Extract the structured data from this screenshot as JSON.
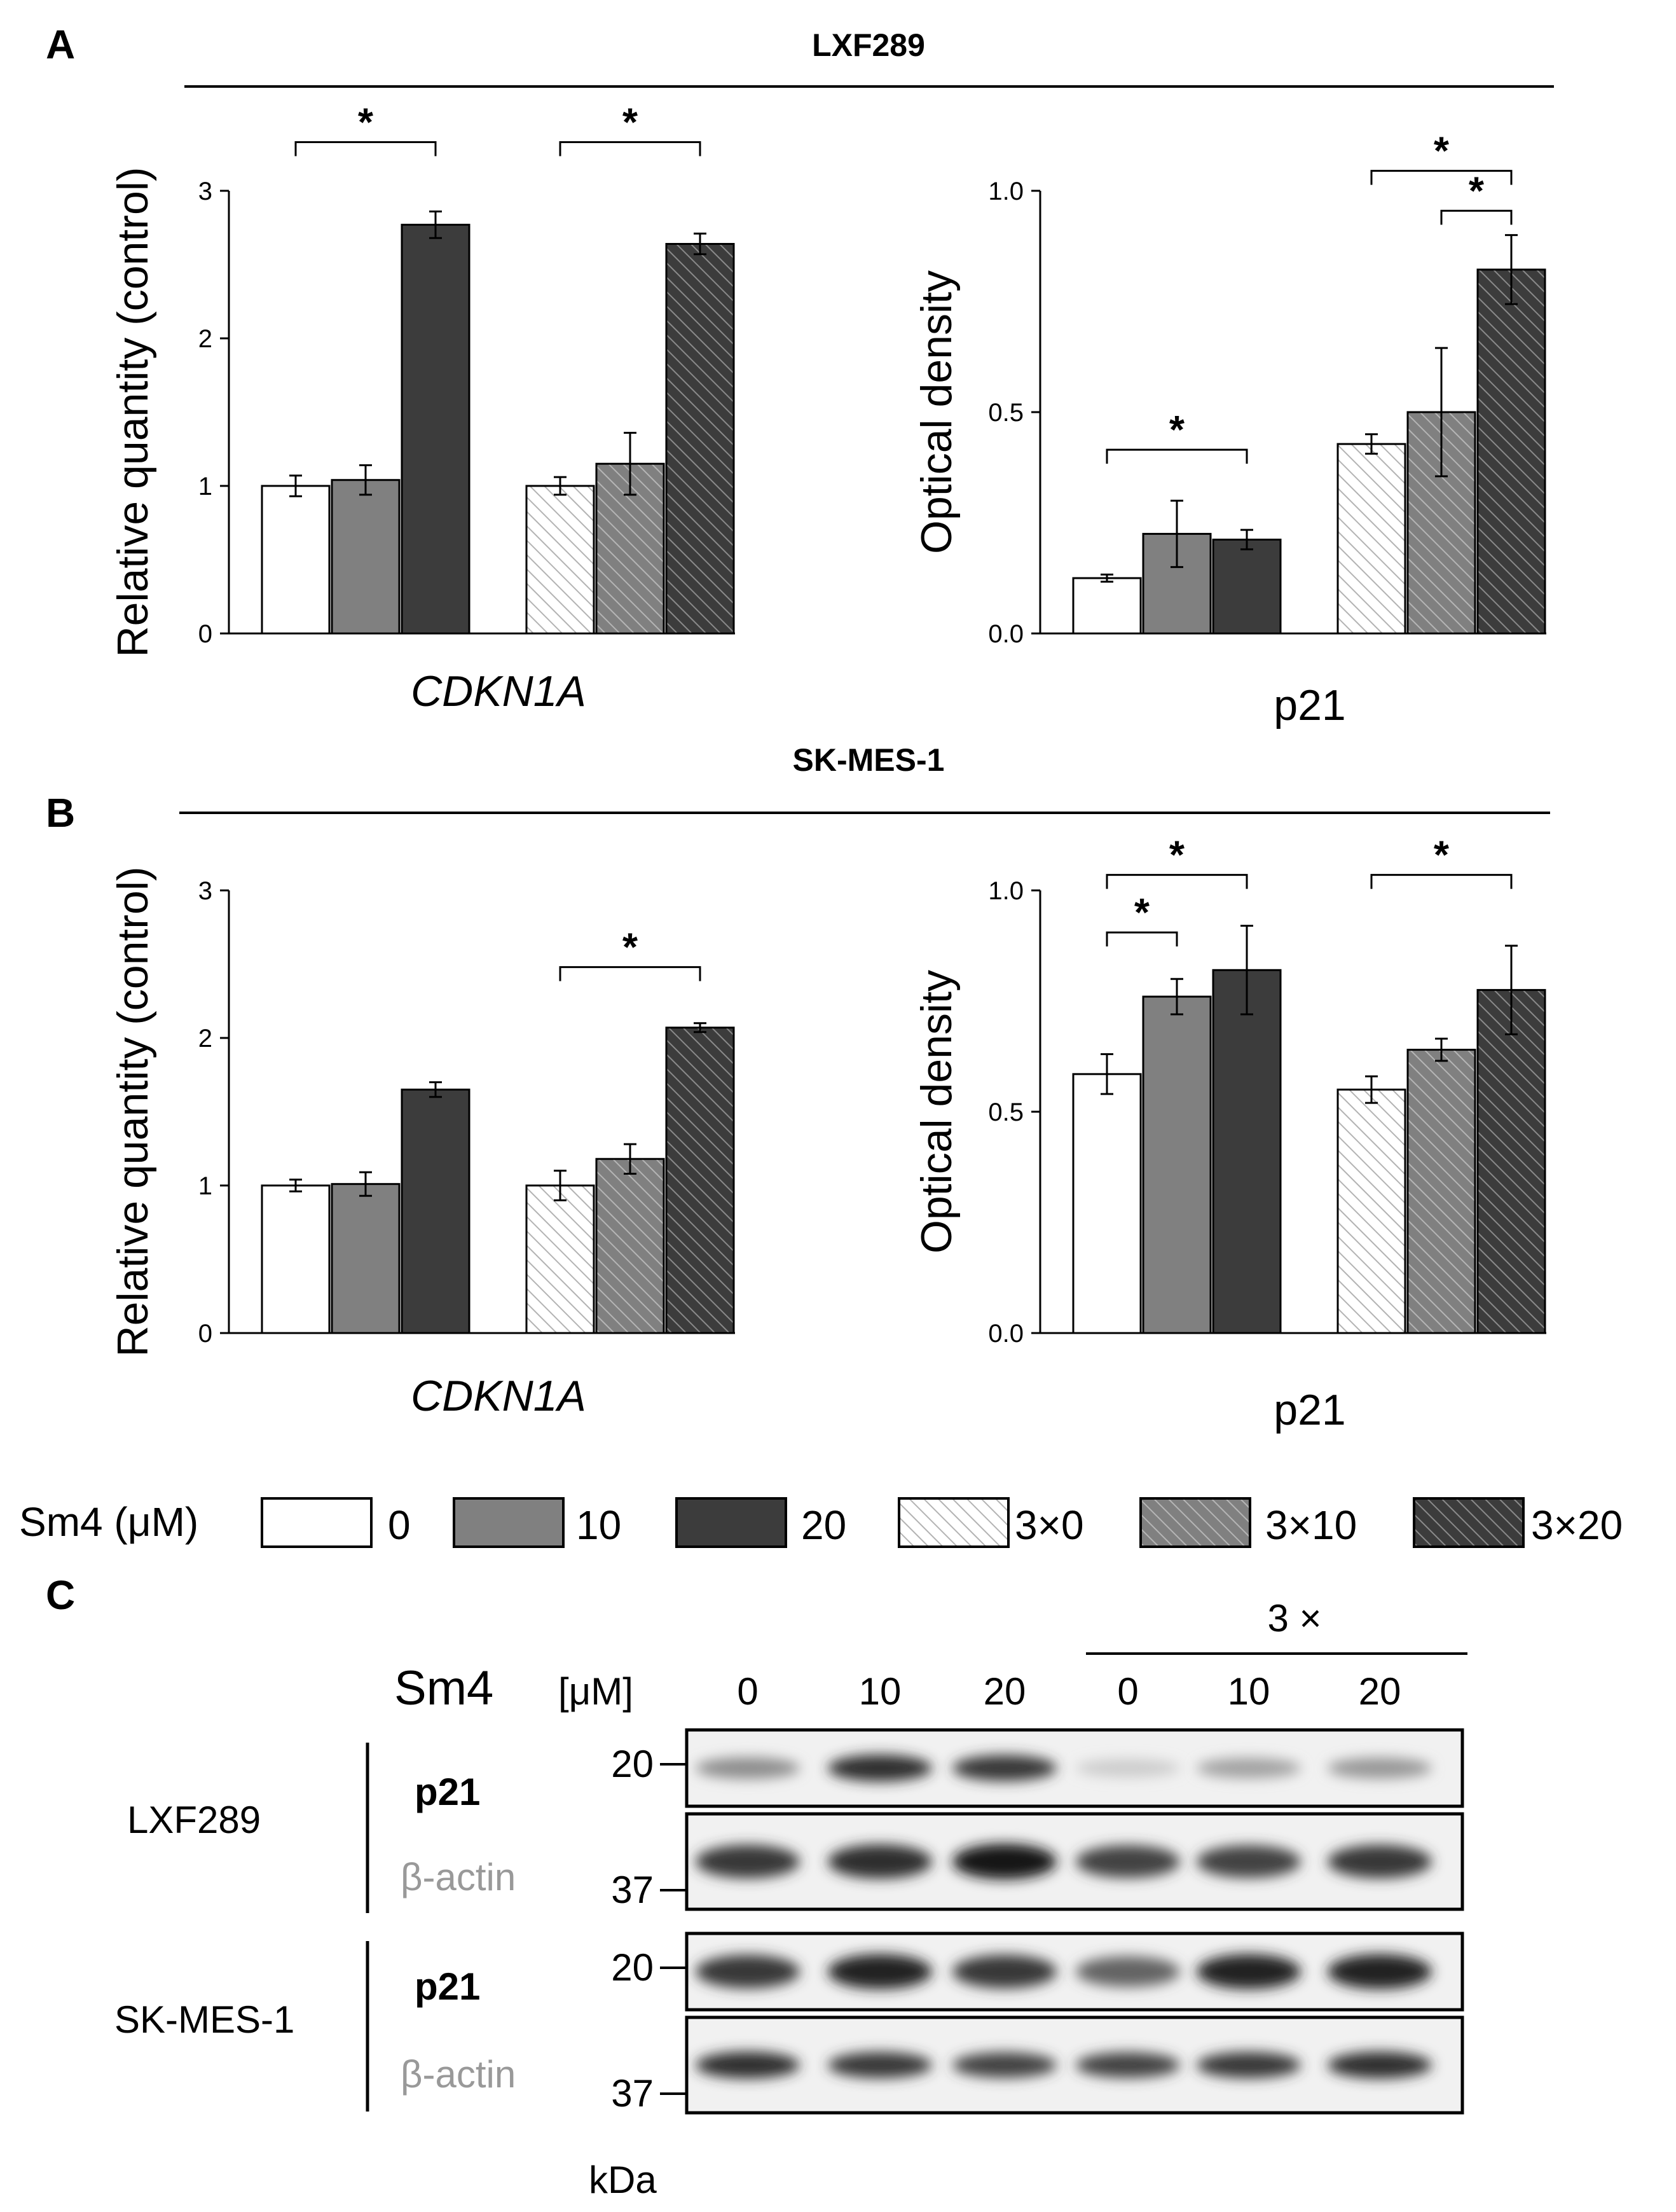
{
  "colors": {
    "c0": "#ffffff",
    "c10": "#808080",
    "c20": "#3c3c3c",
    "hatch_line": "#b3b3b3",
    "hatch_line_dark": "#1c1c1c"
  },
  "panels": {
    "A": {
      "letter": "A",
      "cell_line": "LXF289"
    },
    "B": {
      "letter": "B",
      "cell_line": "SK-MES-1"
    },
    "C": {
      "letter": "C"
    }
  },
  "chart_data": [
    {
      "id": "A-left",
      "type": "bar",
      "ylabel": "Relative quantity (control)",
      "category": "CDKN1A",
      "category_italic": true,
      "yticks": [
        "0",
        "1",
        "2",
        "3"
      ],
      "ylim": [
        0,
        3
      ],
      "series": [
        "0",
        "10",
        "20",
        "3×0",
        "3×10",
        "3×20"
      ],
      "values": [
        1.0,
        1.04,
        2.77,
        1.0,
        1.15,
        2.64
      ],
      "errors": [
        0.07,
        0.1,
        0.09,
        0.06,
        0.21,
        0.07
      ],
      "significance": [
        {
          "from": 0,
          "to": 2,
          "label": "*",
          "level": 3.33
        },
        {
          "from": 3,
          "to": 5,
          "label": "*",
          "level": 3.33
        }
      ]
    },
    {
      "id": "A-right",
      "type": "bar",
      "ylabel": "Optical density",
      "category": "p21",
      "category_italic": false,
      "yticks": [
        "0.0",
        "0.5",
        "1.0"
      ],
      "ylim": [
        0,
        1
      ],
      "series": [
        "0",
        "10",
        "20",
        "3×0",
        "3×10",
        "3×20"
      ],
      "values": [
        0.125,
        0.225,
        0.212,
        0.428,
        0.5,
        0.822
      ],
      "errors": [
        0.008,
        0.075,
        0.022,
        0.022,
        0.145,
        0.078
      ],
      "significance": [
        {
          "from": 0,
          "to": 2,
          "label": "*",
          "level": 0.415
        },
        {
          "from": 3,
          "to": 5,
          "label": "*",
          "level": 1.045
        },
        {
          "from": 4,
          "to": 5,
          "label": "*",
          "level": 0.955
        }
      ]
    },
    {
      "id": "B-left",
      "type": "bar",
      "ylabel": "Relative quantity (control)",
      "category": "CDKN1A",
      "category_italic": true,
      "yticks": [
        "0",
        "1",
        "2",
        "3"
      ],
      "ylim": [
        0,
        3
      ],
      "series": [
        "0",
        "10",
        "20",
        "3×0",
        "3×10",
        "3×20"
      ],
      "values": [
        1.0,
        1.01,
        1.65,
        1.0,
        1.18,
        2.07
      ],
      "errors": [
        0.04,
        0.08,
        0.05,
        0.1,
        0.1,
        0.03
      ],
      "significance": [
        {
          "from": 3,
          "to": 5,
          "label": "*",
          "level": 2.48
        }
      ]
    },
    {
      "id": "B-right",
      "type": "bar",
      "ylabel": "Optical density",
      "category": "p21",
      "category_italic": false,
      "yticks": [
        "0.0",
        "0.5",
        "1.0"
      ],
      "ylim": [
        0,
        1
      ],
      "series": [
        "0",
        "10",
        "20",
        "3×0",
        "3×10",
        "3×20"
      ],
      "values": [
        0.585,
        0.76,
        0.82,
        0.55,
        0.64,
        0.775
      ],
      "errors": [
        0.045,
        0.04,
        0.1,
        0.03,
        0.025,
        0.1
      ],
      "significance": [
        {
          "from": 0,
          "to": 1,
          "label": "*",
          "level": 0.905
        },
        {
          "from": 0,
          "to": 2,
          "label": "*",
          "level": 1.035
        },
        {
          "from": 3,
          "to": 5,
          "label": "*",
          "level": 1.035
        }
      ]
    }
  ],
  "legend": {
    "title": "Sm4 (μM)",
    "items": [
      "0",
      "10",
      "20",
      "3×0",
      "3×10",
      "3×20"
    ]
  },
  "blot": {
    "header_group": "3 ×",
    "sm4_label": "Sm4",
    "unit_label": "[μM]",
    "lanes": [
      "0",
      "10",
      "20",
      "0",
      "10",
      "20"
    ],
    "rows": [
      {
        "cell_line": "LXF289",
        "protein": "p21",
        "marker": "20",
        "intensity": [
          0.45,
          0.9,
          0.85,
          0.15,
          0.35,
          0.4
        ],
        "thin": true
      },
      {
        "cell_line": "",
        "protein": "β-actin",
        "marker": "37",
        "intensity": [
          0.85,
          0.9,
          1.0,
          0.8,
          0.8,
          0.85
        ],
        "thin": false
      },
      {
        "cell_line": "SK-MES-1",
        "protein": "p21",
        "marker": "20",
        "intensity": [
          0.85,
          0.95,
          0.85,
          0.65,
          0.95,
          0.95
        ],
        "thin": false
      },
      {
        "cell_line": "",
        "protein": "β-actin",
        "marker": "37",
        "intensity": [
          0.9,
          0.85,
          0.8,
          0.8,
          0.85,
          0.9
        ],
        "thin": true
      }
    ],
    "kda_label": "kDa"
  }
}
